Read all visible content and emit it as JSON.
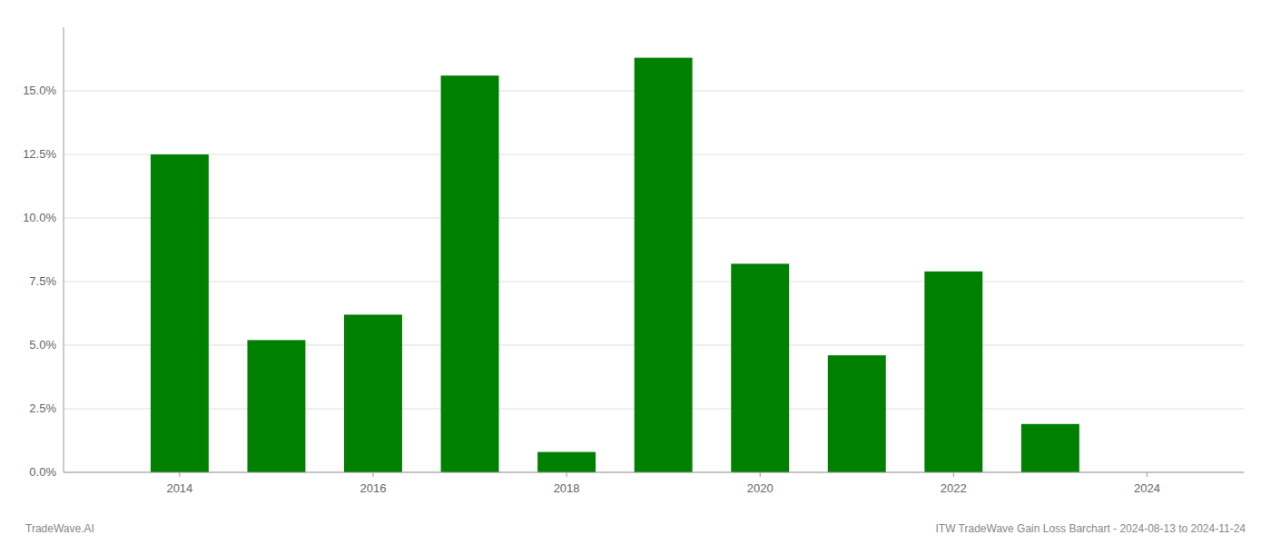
{
  "chart_data": {
    "type": "bar",
    "x": [
      2014,
      2015,
      2016,
      2017,
      2018,
      2019,
      2020,
      2021,
      2022,
      2023,
      2024
    ],
    "values": [
      0.125,
      0.052,
      0.062,
      0.156,
      0.008,
      0.163,
      0.082,
      0.046,
      0.079,
      0.019,
      0.0
    ],
    "color": "#008000",
    "xlim": [
      2012.8,
      2025.0
    ],
    "xticks": [
      2014,
      2016,
      2018,
      2020,
      2022,
      2024
    ],
    "ylim": [
      0,
      0.175
    ],
    "yticks": [
      {
        "value": 0.0,
        "label": "0.0%"
      },
      {
        "value": 0.025,
        "label": "2.5%"
      },
      {
        "value": 0.05,
        "label": "5.0%"
      },
      {
        "value": 0.075,
        "label": "7.5%"
      },
      {
        "value": 0.1,
        "label": "10.0%"
      },
      {
        "value": 0.125,
        "label": "12.5%"
      },
      {
        "value": 0.15,
        "label": "15.0%"
      }
    ],
    "grid": true,
    "annotations": [
      "TradeWave.AI",
      "ITW TradeWave Gain Loss Barchart - 2024-08-13 to 2024-11-24"
    ]
  }
}
